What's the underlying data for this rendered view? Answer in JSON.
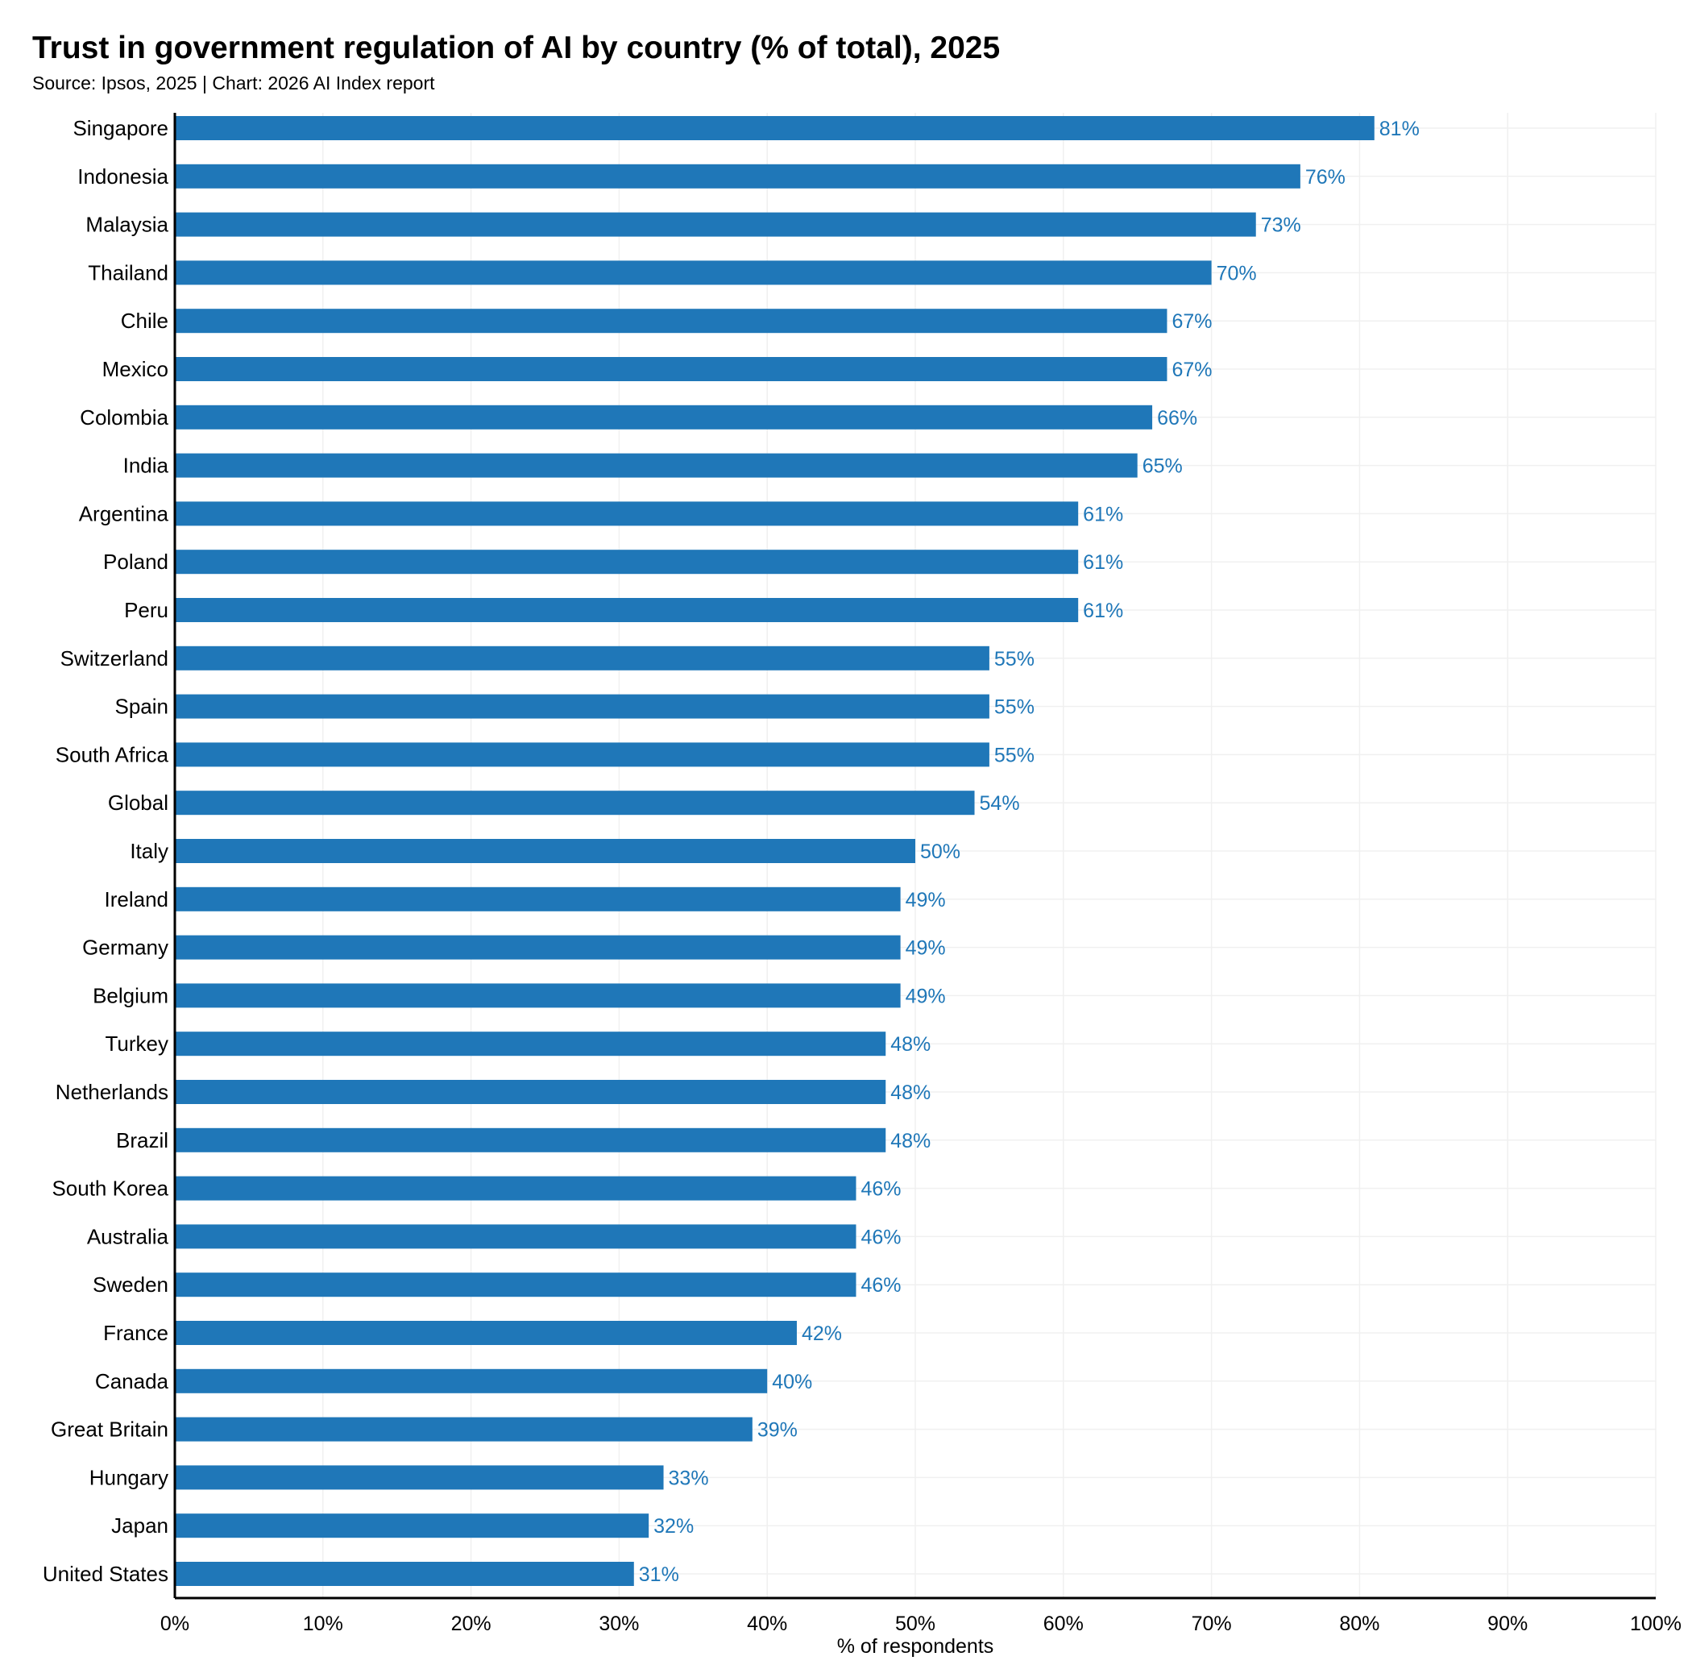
{
  "chart_data": {
    "type": "bar",
    "orientation": "horizontal",
    "title": "Trust in government regulation of AI by country (% of total), 2025",
    "subtitle": "Source: Ipsos, 2025 | Chart: 2026 AI Index report",
    "xlabel": "% of respondents",
    "ylabel": "",
    "xlim": [
      0,
      100
    ],
    "xticks": [
      "0%",
      "10%",
      "20%",
      "30%",
      "40%",
      "50%",
      "60%",
      "70%",
      "80%",
      "90%",
      "100%"
    ],
    "grid": true,
    "bar_color": "#1f77b8",
    "label_color": "#1f77b8",
    "categories": [
      "Singapore",
      "Indonesia",
      "Malaysia",
      "Thailand",
      "Chile",
      "Mexico",
      "Colombia",
      "India",
      "Argentina",
      "Poland",
      "Peru",
      "Switzerland",
      "Spain",
      "South Africa",
      "Global",
      "Italy",
      "Ireland",
      "Germany",
      "Belgium",
      "Turkey",
      "Netherlands",
      "Brazil",
      "South Korea",
      "Australia",
      "Sweden",
      "France",
      "Canada",
      "Great Britain",
      "Hungary",
      "Japan",
      "United States"
    ],
    "values": [
      81,
      76,
      73,
      70,
      67,
      67,
      66,
      65,
      61,
      61,
      61,
      55,
      55,
      55,
      54,
      50,
      49,
      49,
      49,
      48,
      48,
      48,
      46,
      46,
      46,
      42,
      40,
      39,
      33,
      32,
      31
    ],
    "data_labels": [
      "81%",
      "76%",
      "73%",
      "70%",
      "67%",
      "67%",
      "66%",
      "65%",
      "61%",
      "61%",
      "61%",
      "55%",
      "55%",
      "55%",
      "54%",
      "50%",
      "49%",
      "49%",
      "49%",
      "48%",
      "48%",
      "48%",
      "46%",
      "46%",
      "46%",
      "42%",
      "40%",
      "39%",
      "33%",
      "32%",
      "31%"
    ]
  }
}
